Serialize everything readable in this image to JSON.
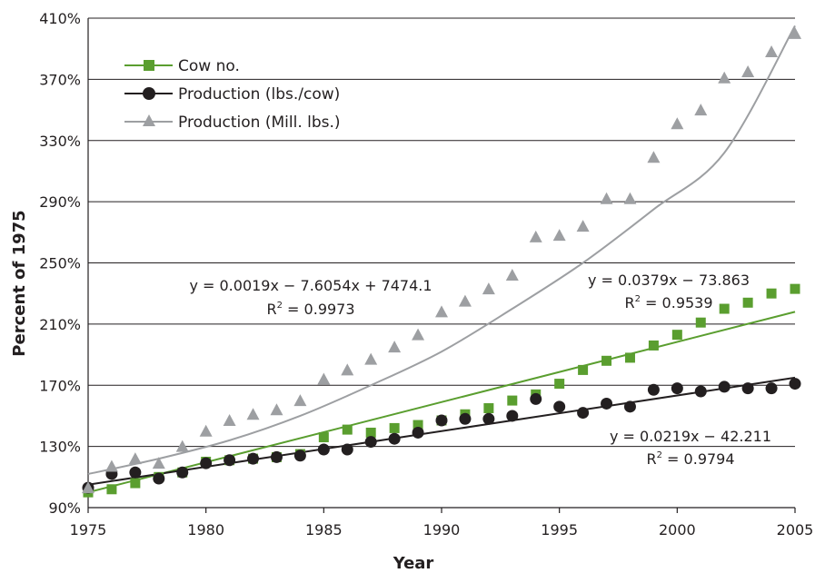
{
  "chart_data": {
    "type": "scatter",
    "title": "",
    "xlabel": "Year",
    "ylabel": "Percent of 1975",
    "xlim": [
      1975,
      2005
    ],
    "ylim": [
      90,
      410
    ],
    "x_ticks": [
      "1975",
      "1980",
      "1985",
      "1990",
      "1995",
      "2000",
      "2005"
    ],
    "y_ticks": [
      "90%",
      "130%",
      "170%",
      "210%",
      "250%",
      "290%",
      "330%",
      "370%",
      "410%"
    ],
    "grid": "horizontal",
    "legend_position": "top-left",
    "x": [
      1975,
      1976,
      1977,
      1978,
      1979,
      1980,
      1981,
      1982,
      1983,
      1984,
      1985,
      1986,
      1987,
      1988,
      1989,
      1990,
      1991,
      1992,
      1993,
      1994,
      1995,
      1996,
      1997,
      1998,
      1999,
      2000,
      2001,
      2002,
      2003,
      2004,
      2005
    ],
    "series": [
      {
        "name": "Cow no.",
        "marker": "square",
        "color": "#5a9e2f",
        "values": [
          100,
          102,
          106,
          110,
          113,
          120,
          121,
          122,
          123,
          125,
          136,
          141,
          139,
          142,
          144,
          147,
          151,
          155,
          160,
          164,
          171,
          180,
          186,
          188,
          196,
          203,
          211,
          220,
          224,
          230,
          233
        ],
        "trendline": {
          "type": "linear",
          "start": [
            1975,
            100
          ],
          "end": [
            2005,
            218
          ]
        }
      },
      {
        "name": "Production (lbs./cow)",
        "marker": "circle",
        "color": "#231f20",
        "values": [
          103,
          112,
          113,
          109,
          113,
          119,
          121,
          122,
          123,
          124,
          128,
          128,
          133,
          135,
          139,
          147,
          148,
          148,
          150,
          161,
          156,
          152,
          158,
          156,
          167,
          168,
          166,
          169,
          168,
          168,
          171
        ],
        "trendline": {
          "type": "linear",
          "start": [
            1975,
            105
          ],
          "end": [
            2005,
            175
          ]
        }
      },
      {
        "name": "Production (Mill. lbs.)",
        "marker": "triangle",
        "color": "#9d9fa2",
        "values": [
          103,
          117,
          122,
          119,
          130,
          140,
          147,
          151,
          154,
          160,
          174,
          180,
          187,
          195,
          203,
          218,
          225,
          233,
          242,
          267,
          268,
          274,
          292,
          292,
          319,
          341,
          350,
          371,
          375,
          388,
          400
        ],
        "trendline": {
          "type": "polynomial",
          "points": [
            [
              1975,
              112
            ],
            [
              1978,
              122
            ],
            [
              1981,
              134
            ],
            [
              1984,
              150
            ],
            [
              1987,
              170
            ],
            [
              1990,
              192
            ],
            [
              1993,
              220
            ],
            [
              1996,
              250
            ],
            [
              1999,
              285
            ],
            [
              2002,
              322
            ],
            [
              2005,
              405
            ]
          ]
        }
      }
    ],
    "annotations": [
      {
        "line1": "y = 0.0019x − 7.6054x + 7474.1",
        "line2": "R",
        "sup": "2",
        "rest": " = 0.9973"
      },
      {
        "line1": "y = 0.0379x − 73.863",
        "line2": "R",
        "sup": "2",
        "rest": " = 0.9539"
      },
      {
        "line1": "y = 0.0219x − 42.211",
        "line2": "R",
        "sup": "2",
        "rest": " = 0.9794"
      }
    ]
  }
}
